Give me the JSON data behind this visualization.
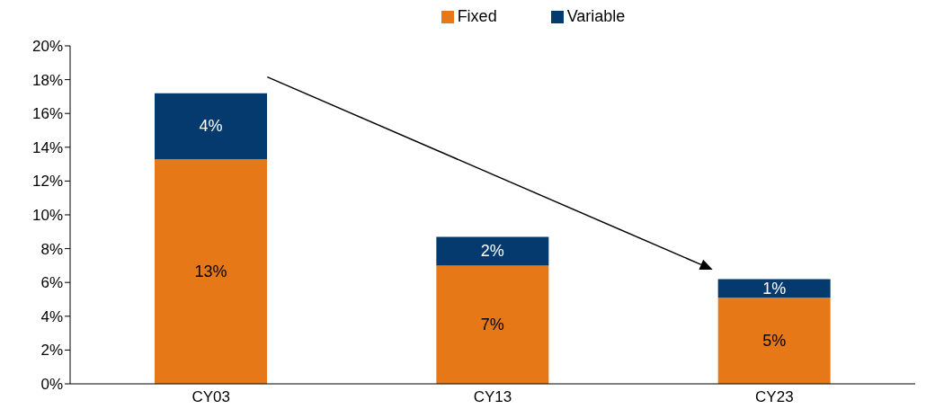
{
  "chart_data": {
    "type": "bar",
    "stacked": true,
    "categories": [
      "CY03",
      "CY13",
      "CY23"
    ],
    "series": [
      {
        "name": "Fixed",
        "color": "#e67818",
        "values": [
          13.3,
          7.0,
          5.1
        ],
        "value_labels": [
          "13%",
          "7%",
          "5%"
        ]
      },
      {
        "name": "Variable",
        "color": "#053a6e",
        "values": [
          3.9,
          1.7,
          1.1
        ],
        "value_labels": [
          "4%",
          "2%",
          "1%"
        ]
      }
    ],
    "ylim": [
      0,
      20
    ],
    "yticks": [
      {
        "value": 0,
        "label": "0%"
      },
      {
        "value": 2,
        "label": "2%"
      },
      {
        "value": 4,
        "label": "4%"
      },
      {
        "value": 6,
        "label": "6%"
      },
      {
        "value": 8,
        "label": "8%"
      },
      {
        "value": 10,
        "label": "10%"
      },
      {
        "value": 12,
        "label": "12%"
      },
      {
        "value": 14,
        "label": "14%"
      },
      {
        "value": 16,
        "label": "16%"
      },
      {
        "value": 18,
        "label": "18%"
      },
      {
        "value": 20,
        "label": "20%"
      }
    ],
    "grid": false,
    "legend": "top"
  }
}
